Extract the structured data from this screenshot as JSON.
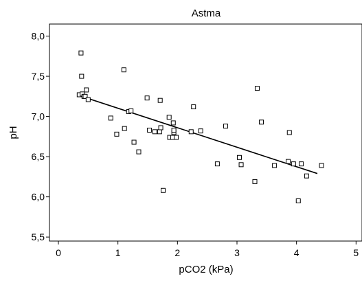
{
  "chart_data": {
    "type": "scatter",
    "title": "Astma",
    "xlabel": "pCO2 (kPa)",
    "ylabel": "pH",
    "xlim": [
      -0.15,
      5.1
    ],
    "ylim": [
      5.45,
      8.15
    ],
    "x_ticks": [
      "0",
      "1",
      "2",
      "3",
      "4",
      "5"
    ],
    "x_tick_values": [
      0,
      1,
      2,
      3,
      4,
      5
    ],
    "y_ticks": [
      "5,5",
      "6,0",
      "6,5",
      "7,0",
      "7,5",
      "8,0"
    ],
    "y_tick_values": [
      5.5,
      6.0,
      6.5,
      7.0,
      7.5,
      8.0
    ],
    "grid": false,
    "legend": "none",
    "marker": "hollow-square",
    "colors": {
      "marker": "#000000",
      "line": "#000000",
      "axis": "#000000"
    },
    "points": [
      [
        0.35,
        7.27
      ],
      [
        0.38,
        7.79
      ],
      [
        0.39,
        7.5
      ],
      [
        0.4,
        7.28
      ],
      [
        0.43,
        7.25
      ],
      [
        0.45,
        7.25
      ],
      [
        0.47,
        7.33
      ],
      [
        0.5,
        7.21
      ],
      [
        0.88,
        6.98
      ],
      [
        0.98,
        6.78
      ],
      [
        1.1,
        7.58
      ],
      [
        1.11,
        6.85
      ],
      [
        1.18,
        7.06
      ],
      [
        1.22,
        7.07
      ],
      [
        1.27,
        6.68
      ],
      [
        1.35,
        6.56
      ],
      [
        1.49,
        7.23
      ],
      [
        1.53,
        6.83
      ],
      [
        1.62,
        6.81
      ],
      [
        1.7,
        6.81
      ],
      [
        1.71,
        7.2
      ],
      [
        1.72,
        6.86
      ],
      [
        1.76,
        6.08
      ],
      [
        1.86,
        6.99
      ],
      [
        1.87,
        6.74
      ],
      [
        1.92,
        6.74
      ],
      [
        1.93,
        6.92
      ],
      [
        1.94,
        6.8
      ],
      [
        1.94,
        6.83
      ],
      [
        1.98,
        6.74
      ],
      [
        2.23,
        6.81
      ],
      [
        2.27,
        7.12
      ],
      [
        2.39,
        6.82
      ],
      [
        2.67,
        6.41
      ],
      [
        2.81,
        6.88
      ],
      [
        3.04,
        6.49
      ],
      [
        3.07,
        6.4
      ],
      [
        3.3,
        6.19
      ],
      [
        3.34,
        7.35
      ],
      [
        3.41,
        6.93
      ],
      [
        3.63,
        6.39
      ],
      [
        3.86,
        6.44
      ],
      [
        3.88,
        6.8
      ],
      [
        3.95,
        6.41
      ],
      [
        4.03,
        5.95
      ],
      [
        4.08,
        6.41
      ],
      [
        4.17,
        6.26
      ],
      [
        4.42,
        6.39
      ]
    ],
    "trendline": {
      "x": [
        0.35,
        4.35
      ],
      "y": [
        7.26,
        6.29
      ]
    }
  }
}
